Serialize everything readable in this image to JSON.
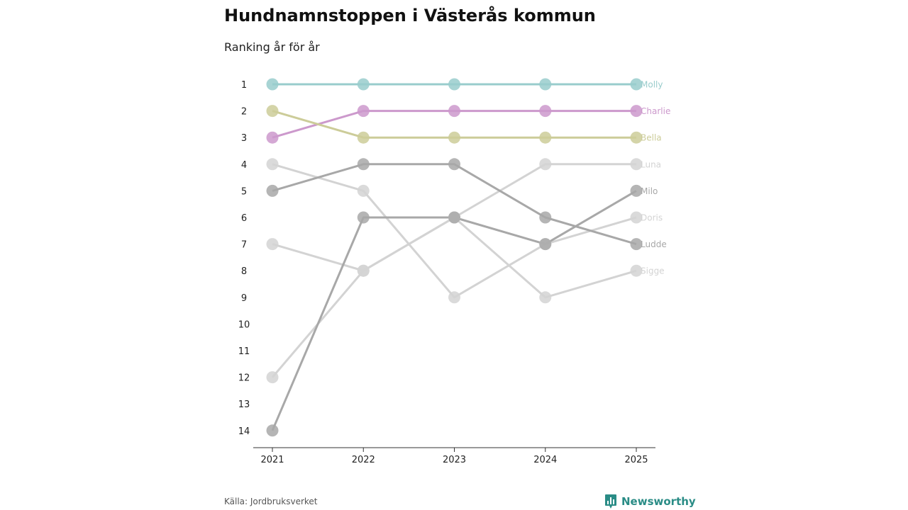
{
  "chart_data": {
    "type": "line",
    "title": "Hundnamnstoppen i Västerås kommun",
    "subtitle": "Ranking år för år",
    "xlabel": "",
    "ylabel": "",
    "x": [
      "2021",
      "2022",
      "2023",
      "2024",
      "2025"
    ],
    "y_ticks": [
      "1",
      "2",
      "3",
      "4",
      "5",
      "6",
      "7",
      "8",
      "9",
      "10",
      "11",
      "12",
      "13",
      "14"
    ],
    "ylim": [
      1,
      14
    ],
    "y_inverted": true,
    "series": [
      {
        "name": "Molly",
        "values": [
          1,
          1,
          1,
          1,
          1
        ],
        "color": "#99cccc"
      },
      {
        "name": "Charlie",
        "values": [
          3,
          2,
          2,
          2,
          2
        ],
        "color": "#cc99cc"
      },
      {
        "name": "Bella",
        "values": [
          2,
          3,
          3,
          3,
          3
        ],
        "color": "#cccc99"
      },
      {
        "name": "Luna",
        "values": [
          12,
          8,
          6,
          4,
          4
        ],
        "color": "#d3d3d3"
      },
      {
        "name": "Milo",
        "values": [
          14,
          6,
          6,
          7,
          5
        ],
        "color": "#a8a8a8"
      },
      {
        "name": "Doris",
        "values": [
          4,
          5,
          9,
          7,
          6
        ],
        "color": "#d3d3d3"
      },
      {
        "name": "Ludde",
        "values": [
          5,
          4,
          4,
          6,
          7
        ],
        "color": "#a8a8a8"
      },
      {
        "name": "Sigge",
        "values": [
          7,
          8,
          6,
          9,
          8
        ],
        "color": "#d3d3d3"
      }
    ],
    "legend": "direct-labels-right"
  },
  "source_text": "Källa: Jordbruksverket",
  "brand": {
    "name": "Newsworthy",
    "icon": "bar-chart-pin-icon",
    "color": "#2a8c86"
  }
}
